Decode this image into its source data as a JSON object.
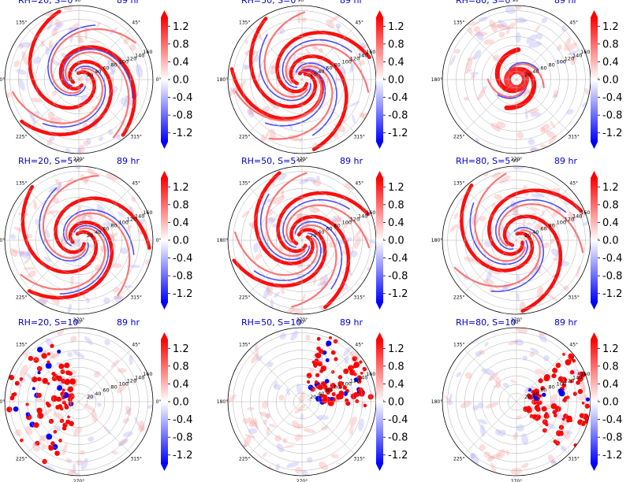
{
  "chart_data": {
    "type": "heatmap",
    "projection": "polar",
    "grid": true,
    "colormap": {
      "name": "bwr",
      "low": "#0000ff",
      "mid": "#ffffff",
      "high": "#ff0000",
      "extend": "both"
    },
    "colorbar": {
      "vmin": -1.4,
      "vmax": 1.4,
      "ticks": [
        "1.2",
        "0.8",
        "0.4",
        "0.0",
        "-0.4",
        "-0.8",
        "-1.2"
      ]
    },
    "angle_ticks": [
      "90°",
      "45°",
      "0°",
      "315°",
      "270°",
      "225°",
      "180°",
      "135°"
    ],
    "radial_ticks": [
      "20",
      "40",
      "60",
      "80",
      "100",
      "120",
      "140",
      "160"
    ],
    "panels": [
      {
        "row": 0,
        "col": 0,
        "title": "RH=20, S=0",
        "time": "89 hr",
        "pattern": "spiral",
        "arms": 3,
        "tightness": 2.1,
        "seed": 11
      },
      {
        "row": 0,
        "col": 1,
        "title": "RH=50, S=0",
        "time": "89 hr",
        "pattern": "spiral",
        "arms": 4,
        "tightness": 1.8,
        "seed": 23
      },
      {
        "row": 0,
        "col": 2,
        "title": "RH=80, S=0",
        "time": "89 hr",
        "pattern": "core",
        "arms": 2,
        "tightness": 2.6,
        "seed": 37
      },
      {
        "row": 1,
        "col": 0,
        "title": "RH=20, S=5",
        "time": "89 hr",
        "pattern": "spiral",
        "arms": 3,
        "tightness": 2.0,
        "seed": 41
      },
      {
        "row": 1,
        "col": 1,
        "title": "RH=50, S=5",
        "time": "89 hr",
        "pattern": "spiral",
        "arms": 4,
        "tightness": 1.7,
        "seed": 53
      },
      {
        "row": 1,
        "col": 2,
        "title": "RH=80, S=5",
        "time": "89 hr",
        "pattern": "spiral",
        "arms": 3,
        "tightness": 1.9,
        "seed": 67
      },
      {
        "row": 2,
        "col": 0,
        "title": "RH=20, S=10",
        "time": "89 hr",
        "pattern": "scattered",
        "arms": 3,
        "tightness": 1.5,
        "seed": 71
      },
      {
        "row": 2,
        "col": 1,
        "title": "RH=50, S=10",
        "time": "89 hr",
        "pattern": "ne-cluster",
        "arms": 2,
        "tightness": 1.5,
        "seed": 83
      },
      {
        "row": 2,
        "col": 2,
        "title": "RH=80, S=10",
        "time": "89 hr",
        "pattern": "e-band",
        "arms": 2,
        "tightness": 1.5,
        "seed": 97
      }
    ]
  }
}
